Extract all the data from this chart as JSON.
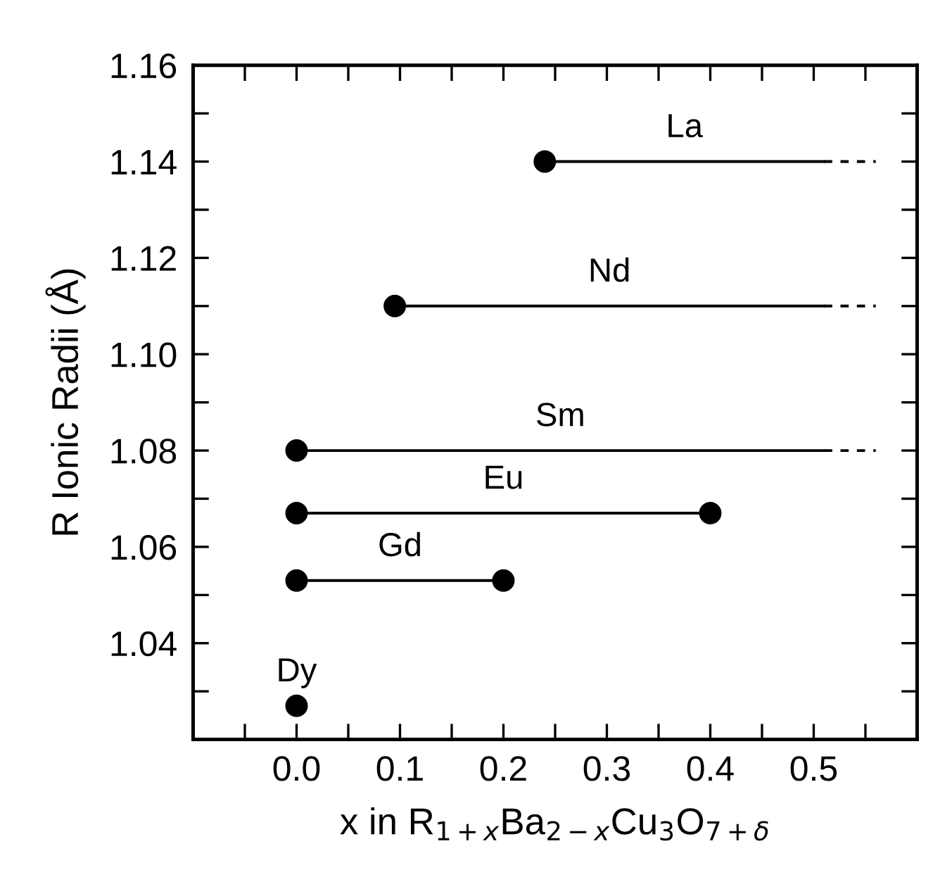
{
  "chart_data": {
    "type": "line",
    "xlabel": "x in R$_{1+x}$Ba$_{2−x}$Cu$_{3}$O$_{7+δ}$",
    "ylabel": "R Ionic Radii (Å)",
    "xlim": [
      -0.1,
      0.6
    ],
    "ylim": [
      1.02,
      1.16
    ],
    "xticks": [
      {
        "value": -0.05,
        "label": null
      },
      {
        "value": 0.0,
        "label": "0.0"
      },
      {
        "value": 0.05,
        "label": null
      },
      {
        "value": 0.1,
        "label": "0.1"
      },
      {
        "value": 0.15,
        "label": null
      },
      {
        "value": 0.2,
        "label": "0.2"
      },
      {
        "value": 0.25,
        "label": null
      },
      {
        "value": 0.3,
        "label": "0.3"
      },
      {
        "value": 0.35,
        "label": null
      },
      {
        "value": 0.4,
        "label": "0.4"
      },
      {
        "value": 0.45,
        "label": null
      },
      {
        "value": 0.5,
        "label": "0.5"
      },
      {
        "value": 0.55,
        "label": null
      }
    ],
    "yticks": [
      {
        "value": 1.03,
        "label": null
      },
      {
        "value": 1.04,
        "label": "1.04"
      },
      {
        "value": 1.05,
        "label": null
      },
      {
        "value": 1.06,
        "label": "1.06"
      },
      {
        "value": 1.07,
        "label": null
      },
      {
        "value": 1.08,
        "label": "1.08"
      },
      {
        "value": 1.09,
        "label": null
      },
      {
        "value": 1.1,
        "label": "1.10"
      },
      {
        "value": 1.11,
        "label": null
      },
      {
        "value": 1.12,
        "label": "1.12"
      },
      {
        "value": 1.13,
        "label": null
      },
      {
        "value": 1.14,
        "label": "1.14"
      },
      {
        "value": 1.15,
        "label": null
      },
      {
        "value": 1.16,
        "label": "1.16"
      }
    ],
    "grid": false,
    "series": [
      {
        "name": "La",
        "color": "#000000",
        "line_style": "solid",
        "x": [
          0.24,
          0.51
        ],
        "values": [
          1.14,
          1.14
        ]
      },
      {
        "color": "#000000",
        "line_style": "dashed",
        "x": [
          0.51,
          0.56
        ],
        "values": [
          1.14,
          1.14
        ]
      },
      {
        "name": "Nd",
        "color": "#000000",
        "line_style": "solid",
        "x": [
          0.095,
          0.51
        ],
        "values": [
          1.11,
          1.11
        ]
      },
      {
        "color": "#000000",
        "line_style": "dashed",
        "x": [
          0.51,
          0.56
        ],
        "values": [
          1.11,
          1.11
        ]
      },
      {
        "name": "Sm",
        "color": "#000000",
        "line_style": "solid",
        "x": [
          0.0,
          0.51
        ],
        "values": [
          1.08,
          1.08
        ]
      },
      {
        "color": "#000000",
        "line_style": "dashed",
        "x": [
          0.51,
          0.56
        ],
        "values": [
          1.08,
          1.08
        ]
      },
      {
        "name": "Eu",
        "color": "#000000",
        "line_style": "solid",
        "x": [
          0.0,
          0.4
        ],
        "values": [
          1.067,
          1.067
        ]
      },
      {
        "name": "Gd",
        "color": "#000000",
        "line_style": "solid",
        "x": [
          0.0,
          0.2
        ],
        "values": [
          1.053,
          1.053
        ]
      },
      {
        "type": "scatter",
        "name": "Dy",
        "color": "#000000",
        "marker": "circle",
        "x": [
          0.0
        ],
        "values": [
          1.027
        ]
      },
      {
        "type": "scatter",
        "color": "#000000",
        "marker": "circle",
        "x": [
          0.24,
          0.095,
          0.0,
          0.0,
          0.4,
          0.0,
          0.2
        ],
        "values": [
          1.14,
          1.11,
          1.08,
          1.067,
          1.067,
          1.053,
          1.053
        ]
      }
    ]
  }
}
